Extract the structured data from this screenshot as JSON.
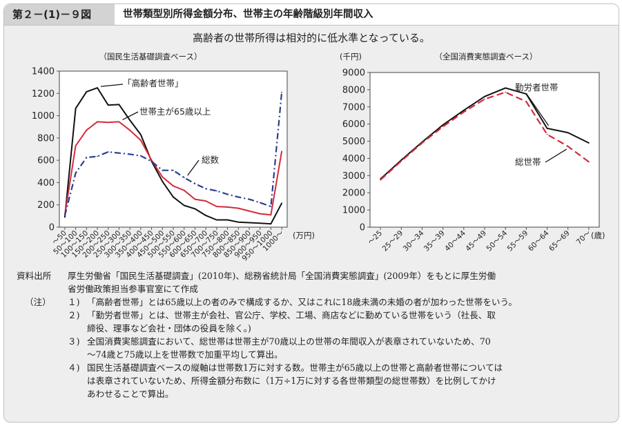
{
  "header": {
    "figure_number": "第２－(1)－９図",
    "title": "世帯類型別所得金額分布、世帯主の年齢階級別年間収入"
  },
  "subtitle": "高齢者の世帯所得は相対的に低水準となっている。",
  "chart_data": [
    {
      "type": "line",
      "title": "（国民生活基礎調査ベース）",
      "unit_label": "(万円)",
      "ylim": [
        0,
        1400
      ],
      "yticks": [
        0,
        200,
        400,
        600,
        800,
        1000,
        1200,
        1400
      ],
      "categories": [
        "～50",
        "50～100",
        "100～150",
        "150～200",
        "200～250",
        "250～300",
        "300～350",
        "350～400",
        "400～450",
        "450～500",
        "500～550",
        "550～600",
        "600～650",
        "650～700",
        "700～750",
        "750～800",
        "800～850",
        "850～900",
        "900～950",
        "950～1000",
        "1000～"
      ],
      "series": [
        {
          "name": "「高齢者世帯」",
          "color": "#111111",
          "dash": "solid",
          "values": [
            90,
            1065,
            1215,
            1250,
            1095,
            1100,
            960,
            830,
            590,
            410,
            270,
            195,
            165,
            105,
            65,
            65,
            45,
            40,
            35,
            30,
            215
          ]
        },
        {
          "name": "世帯主が65歳以上",
          "color": "#d02c3c",
          "dash": "solid",
          "values": [
            110,
            730,
            870,
            945,
            940,
            945,
            870,
            780,
            600,
            450,
            370,
            330,
            250,
            235,
            185,
            180,
            170,
            145,
            120,
            110,
            680
          ]
        },
        {
          "name": "総数",
          "color": "#2b3d8f",
          "dash": "dashdot",
          "values": [
            105,
            485,
            625,
            635,
            675,
            665,
            655,
            640,
            590,
            510,
            510,
            445,
            390,
            345,
            325,
            295,
            270,
            250,
            220,
            185,
            1210
          ]
        }
      ]
    },
    {
      "type": "line",
      "title": "（全国消費実態調査ベース）",
      "ylabel": "(千円)",
      "unit_label": "(歳)",
      "ylim": [
        0,
        9000
      ],
      "yticks": [
        0,
        1000,
        2000,
        3000,
        4000,
        5000,
        6000,
        7000,
        8000,
        9000
      ],
      "categories": [
        "～25",
        "25～29",
        "30～34",
        "35～39",
        "40～44",
        "45～49",
        "50～54",
        "55～59",
        "60～64",
        "65～69",
        "70～"
      ],
      "series": [
        {
          "name": "勤労者世帯",
          "color": "#111111",
          "dash": "solid",
          "values": [
            2800,
            3900,
            4950,
            5950,
            6800,
            7600,
            8100,
            7750,
            5750,
            5500,
            4900
          ]
        },
        {
          "name": "総世帯",
          "color": "#d02c3c",
          "dash": "dashed",
          "values": [
            2750,
            3850,
            4900,
            5850,
            6700,
            7450,
            7850,
            7300,
            5400,
            4700,
            3800
          ]
        }
      ]
    }
  ],
  "notes": {
    "source_label": "資料出所",
    "source_text": [
      "厚生労働省「国民生活基礎調査」(2010年)、総務省統計局「全国消費実態調査」(2009年）をもとに厚生労働",
      "省労働政策担当参事官室にて作成"
    ],
    "notes_label": "（注）",
    "items": [
      {
        "num": "１)",
        "lines": [
          "「高齢者世帯」とは65歳以上の者のみで構成するか、又はこれに18歳未満の未婚の者が加わった世帯をいう。"
        ]
      },
      {
        "num": "２)",
        "lines": [
          "「勤労者世帯」とは、世帯主が会社、官公庁、学校、工場、商店などに勤めている世帯をいう（社長、取",
          "締役、理事など会社・団体の役員を除く。)"
        ]
      },
      {
        "num": "３)",
        "lines": [
          "全国消費実態調査において、総世帯は世帯主が70歳以上の世帯の年間収入が表章されていないため、70",
          "～74歳と75歳以上を世帯数で加重平均して算出。"
        ]
      },
      {
        "num": "４)",
        "lines": [
          "国民生活基礎調査ベースの縦軸は世帯数1万に対する数。世帯主が65歳以上の世帯と高齢者世帯については",
          "は表章されていないため、所得金額分布数に（1万÷1万に対する各世帯類型の総世帯数）を比例してかけ",
          "あわせることで算出。"
        ]
      }
    ]
  }
}
